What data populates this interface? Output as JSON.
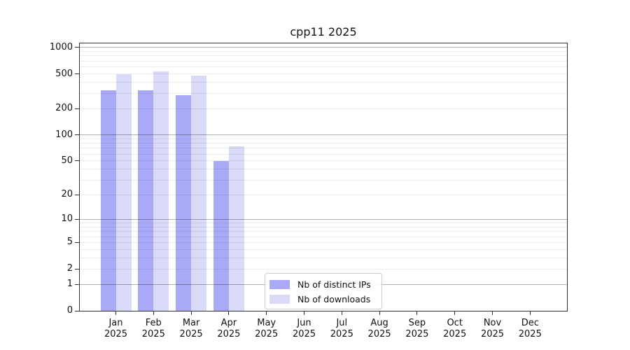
{
  "title": "cpp11 2025",
  "chart_data": {
    "type": "bar",
    "title": "cpp11 2025",
    "x_tick_months": [
      "Jan",
      "Feb",
      "Mar",
      "Apr",
      "May",
      "Jun",
      "Jul",
      "Aug",
      "Sep",
      "Oct",
      "Nov",
      "Dec"
    ],
    "x_tick_year": "2025",
    "series": [
      {
        "name": "Nb of distinct IPs",
        "color": "#a9a9f6",
        "values": [
          325,
          325,
          285,
          50,
          null,
          null,
          null,
          null,
          null,
          null,
          null,
          null
        ]
      },
      {
        "name": "Nb of downloads",
        "color": "#d9d9f8",
        "values": [
          495,
          535,
          475,
          74,
          null,
          null,
          null,
          null,
          null,
          null,
          null,
          null
        ]
      }
    ],
    "y_scale": "log10(1+y)",
    "y_ticks": [
      0,
      1,
      2,
      5,
      10,
      20,
      50,
      100,
      200,
      500,
      1000
    ],
    "y_max": 1112,
    "grid": {
      "major_values": [
        1,
        10,
        100,
        1000
      ],
      "minor_values": [
        2,
        3,
        4,
        5,
        6,
        7,
        8,
        9,
        20,
        30,
        40,
        50,
        60,
        70,
        80,
        90,
        200,
        300,
        400,
        500,
        600,
        700,
        800,
        900
      ],
      "major_color": "rgba(0,0,0,0.30)",
      "minor_color": "rgba(0,0,0,0.075)"
    },
    "legend": {
      "position": "lower center",
      "items": [
        "Nb of distinct IPs",
        "Nb of downloads"
      ]
    },
    "frame_color": "#333333"
  }
}
